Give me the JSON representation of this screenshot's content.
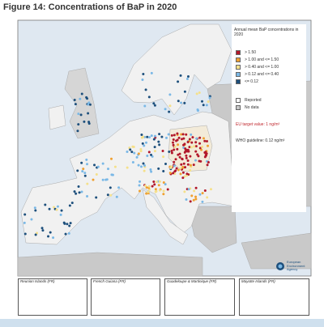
{
  "figure": {
    "title": "Figure 14: Concentrations of BaP in 2020"
  },
  "legend": {
    "title": "Annual mean BaP concentrations in 2020",
    "classes": [
      {
        "label": "> 1.50",
        "color": "#b2182b"
      },
      {
        "label": "> 1.00 and <= 1.50",
        "color": "#f0a030"
      },
      {
        "label": "> 0.40 and <= 1.00",
        "color": "#f5e08a"
      },
      {
        "label": "> 0.12 and <= 0.40",
        "color": "#7ab8e6"
      },
      {
        "label": "<= 0.12",
        "color": "#1d4f7c"
      }
    ],
    "reported": "Reported",
    "no_data": "No data",
    "eu_target": "EU target value: 1 ng/m³",
    "who_guideline": "WHO guideline: 0.12 ng/m³"
  },
  "logo": {
    "lines": [
      "European",
      "Environment",
      "Agency"
    ]
  },
  "insets": [
    "Reunion Islands (FR)",
    "French Guiana (FR)",
    "Guadeloupe & Martinique (FR)",
    "Mayotte Islands (FR)"
  ]
}
